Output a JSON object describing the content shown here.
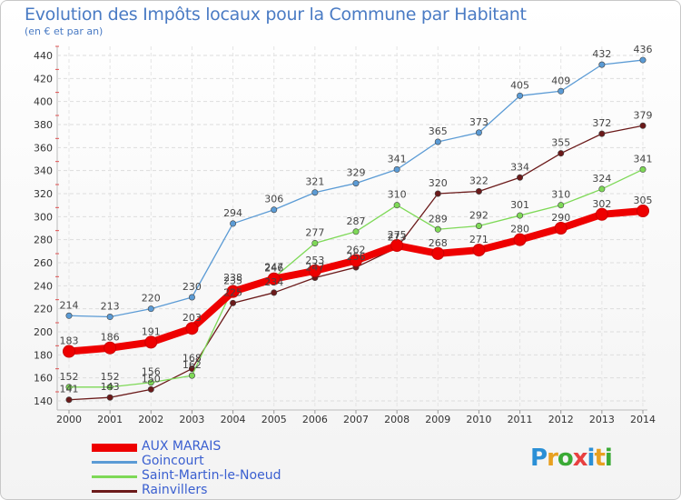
{
  "chart_data": {
    "type": "line",
    "title": "Evolution des Impôts locaux pour la Commune par Habitant",
    "subtitle": "(en € et par an)",
    "x": [
      "2000",
      "2001",
      "2002",
      "2003",
      "2004",
      "2005",
      "2006",
      "2007",
      "2008",
      "2009",
      "2010",
      "2011",
      "2012",
      "2013",
      "2014"
    ],
    "ylim": [
      140,
      440
    ],
    "yticks": [
      140,
      160,
      180,
      200,
      220,
      240,
      260,
      280,
      300,
      320,
      340,
      360,
      380,
      400,
      420,
      440
    ],
    "grid": true,
    "legend_position": "bottom-left",
    "series": [
      {
        "name": "Rainvillers",
        "color": "#6b1a1a",
        "values": [
          141,
          143,
          150,
          168,
          225,
          234,
          247,
          256,
          273,
          320,
          322,
          334,
          355,
          372,
          379
        ]
      },
      {
        "name": "Saint-Martin-le-Noeud",
        "color": "#7ed957",
        "values": [
          152,
          152,
          156,
          162,
          238,
          247,
          277,
          287,
          310,
          289,
          292,
          301,
          310,
          324,
          341
        ]
      },
      {
        "name": "Goincourt",
        "color": "#5b9bd5",
        "values": [
          214,
          213,
          220,
          230,
          294,
          306,
          321,
          329,
          341,
          365,
          373,
          405,
          409,
          432,
          436
        ]
      },
      {
        "name": "AUX MARAIS",
        "color": "#ee0000",
        "values": [
          183,
          186,
          191,
          203,
          235,
          246,
          253,
          262,
          275,
          268,
          271,
          280,
          290,
          302,
          305
        ]
      }
    ],
    "labels": [
      {
        "series": 0,
        "values": [
          "141",
          "143",
          "150",
          "168",
          "225",
          "234",
          "247",
          "256",
          "273",
          "320",
          "322",
          "334",
          "355",
          "372",
          "379"
        ]
      },
      {
        "series": 1,
        "values": [
          "152",
          "152",
          "156",
          "162",
          "238",
          "247",
          "277",
          "287",
          "310",
          "289",
          "292",
          "301",
          "310",
          "324",
          "341"
        ]
      },
      {
        "series": 2,
        "values": [
          "214",
          "213",
          "220",
          "230",
          "294",
          "306",
          "321",
          "329",
          "341",
          "365",
          "373",
          "405",
          "409",
          "432",
          "436"
        ]
      },
      {
        "series": 3,
        "values": [
          "183",
          "186",
          "191",
          "203",
          "235",
          "246",
          "253",
          "262",
          "275",
          "268",
          "271",
          "280",
          "290",
          "302",
          "305"
        ]
      }
    ]
  },
  "legend": [
    {
      "label": "AUX MARAIS",
      "color": "#ee0000",
      "thick": true
    },
    {
      "label": "Goincourt",
      "color": "#5b9bd5",
      "thick": false
    },
    {
      "label": "Saint-Martin-le-Noeud",
      "color": "#7ed957",
      "thick": false
    },
    {
      "label": "Rainvillers",
      "color": "#6b1a1a",
      "thick": false
    }
  ],
  "logo": {
    "letters": [
      "P",
      "r",
      "o",
      "x",
      "i",
      "t",
      "i"
    ],
    "colors": [
      "#2a8fd6",
      "#e8a020",
      "#3aaa35",
      "#e84040",
      "#2a8fd6",
      "#e8a020",
      "#3aaa35"
    ]
  }
}
